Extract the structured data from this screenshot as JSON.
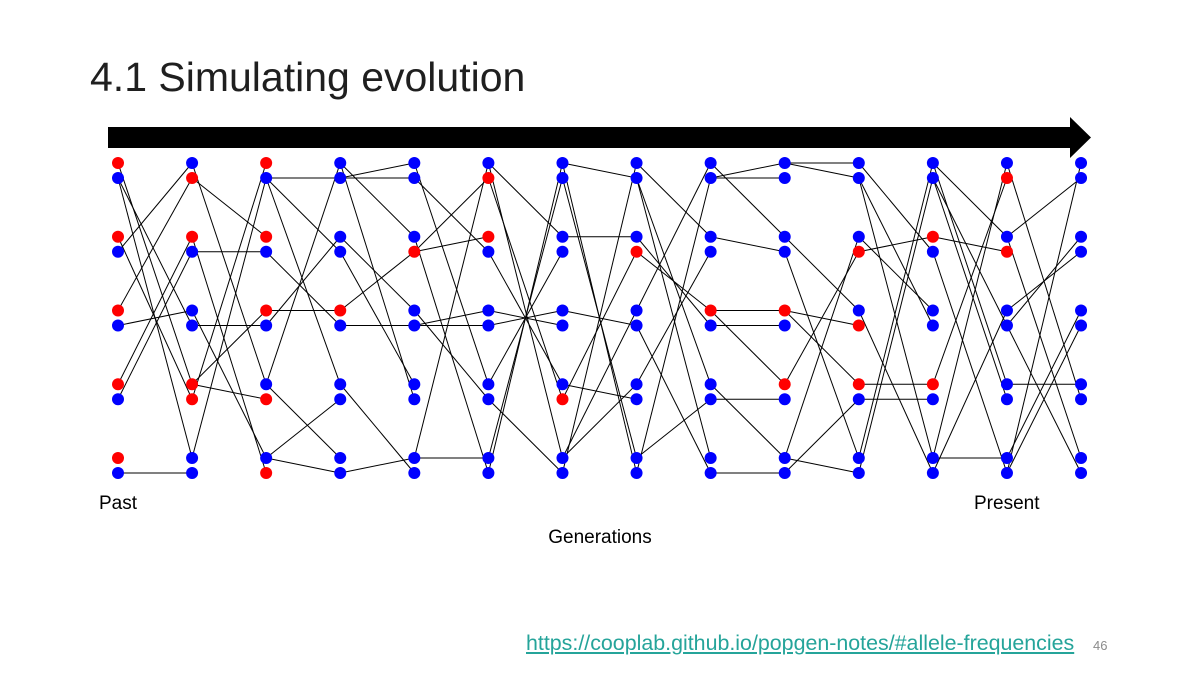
{
  "slide": {
    "title": "4.1 Simulating evolution",
    "link": "https://cooplab.github.io/popgen-notes/#allele-frequencies",
    "page_number": "46"
  },
  "theme": {
    "link_color": "#25a49a",
    "arrow_color": "#000000",
    "line_color": "#000000"
  },
  "diagram": {
    "labels": {
      "past": "Past",
      "present": "Present",
      "axis": "Generations"
    },
    "generations": [
      {
        "alleles": [
          "red",
          "blue",
          "red",
          "blue",
          "red",
          "blue",
          "red",
          "blue",
          "red",
          "blue"
        ]
      },
      {
        "alleles": [
          "blue",
          "red",
          "red",
          "blue",
          "blue",
          "blue",
          "red",
          "red",
          "blue",
          "blue"
        ],
        "parents": [
          3,
          4,
          6,
          7,
          5,
          1,
          0,
          2,
          1,
          9
        ]
      },
      {
        "alleles": [
          "red",
          "blue",
          "red",
          "blue",
          "red",
          "blue",
          "blue",
          "red",
          "blue",
          "red"
        ],
        "parents": [
          7,
          8,
          1,
          3,
          6,
          5,
          0,
          6,
          4,
          2
        ]
      },
      {
        "alleles": [
          "blue",
          "blue",
          "blue",
          "blue",
          "red",
          "blue",
          "blue",
          "blue",
          "blue",
          "blue"
        ],
        "parents": [
          6,
          1,
          5,
          1,
          4,
          3,
          1,
          8,
          6,
          8
        ]
      },
      {
        "alleles": [
          "blue",
          "blue",
          "blue",
          "red",
          "blue",
          "blue",
          "blue",
          "blue",
          "blue",
          "blue"
        ],
        "parents": [
          1,
          1,
          0,
          4,
          2,
          5,
          3,
          0,
          9,
          6
        ]
      },
      {
        "alleles": [
          "blue",
          "red",
          "red",
          "blue",
          "blue",
          "blue",
          "blue",
          "blue",
          "blue",
          "blue"
        ],
        "parents": [
          8,
          3,
          3,
          1,
          5,
          5,
          0,
          4,
          8,
          2
        ]
      },
      {
        "alleles": [
          "blue",
          "blue",
          "blue",
          "blue",
          "blue",
          "blue",
          "blue",
          "red",
          "blue",
          "blue"
        ],
        "parents": [
          9,
          8,
          0,
          6,
          5,
          4,
          3,
          1,
          0,
          7
        ]
      },
      {
        "alleles": [
          "blue",
          "blue",
          "blue",
          "red",
          "blue",
          "blue",
          "blue",
          "blue",
          "blue",
          "blue"
        ],
        "parents": [
          9,
          0,
          2,
          7,
          8,
          4,
          8,
          6,
          1,
          0
        ]
      },
      {
        "alleles": [
          "blue",
          "blue",
          "blue",
          "blue",
          "red",
          "blue",
          "blue",
          "blue",
          "blue",
          "blue"
        ],
        "parents": [
          4,
          9,
          0,
          6,
          3,
          2,
          1,
          8,
          1,
          5
        ]
      },
      {
        "alleles": [
          "blue",
          "blue",
          "blue",
          "blue",
          "red",
          "blue",
          "red",
          "blue",
          "blue",
          "blue"
        ],
        "parents": [
          1,
          1,
          0,
          2,
          4,
          5,
          4,
          7,
          6,
          9
        ]
      },
      {
        "alleles": [
          "blue",
          "blue",
          "blue",
          "red",
          "blue",
          "red",
          "red",
          "blue",
          "blue",
          "blue"
        ],
        "parents": [
          0,
          0,
          8,
          6,
          2,
          4,
          4,
          9,
          3,
          8
        ]
      },
      {
        "alleles": [
          "blue",
          "blue",
          "red",
          "blue",
          "blue",
          "blue",
          "red",
          "blue",
          "blue",
          "blue"
        ],
        "parents": [
          8,
          9,
          3,
          0,
          2,
          1,
          6,
          7,
          1,
          4
        ]
      },
      {
        "alleles": [
          "blue",
          "red",
          "blue",
          "red",
          "blue",
          "blue",
          "blue",
          "blue",
          "blue",
          "blue"
        ],
        "parents": [
          8,
          6,
          0,
          2,
          9,
          1,
          0,
          1,
          8,
          3
        ]
      },
      {
        "alleles": [
          "blue",
          "blue",
          "blue",
          "blue",
          "blue",
          "blue",
          "blue",
          "blue",
          "blue",
          "blue"
        ],
        "parents": [
          9,
          2,
          5,
          4,
          8,
          9,
          6,
          0,
          2,
          5
        ]
      }
    ]
  }
}
